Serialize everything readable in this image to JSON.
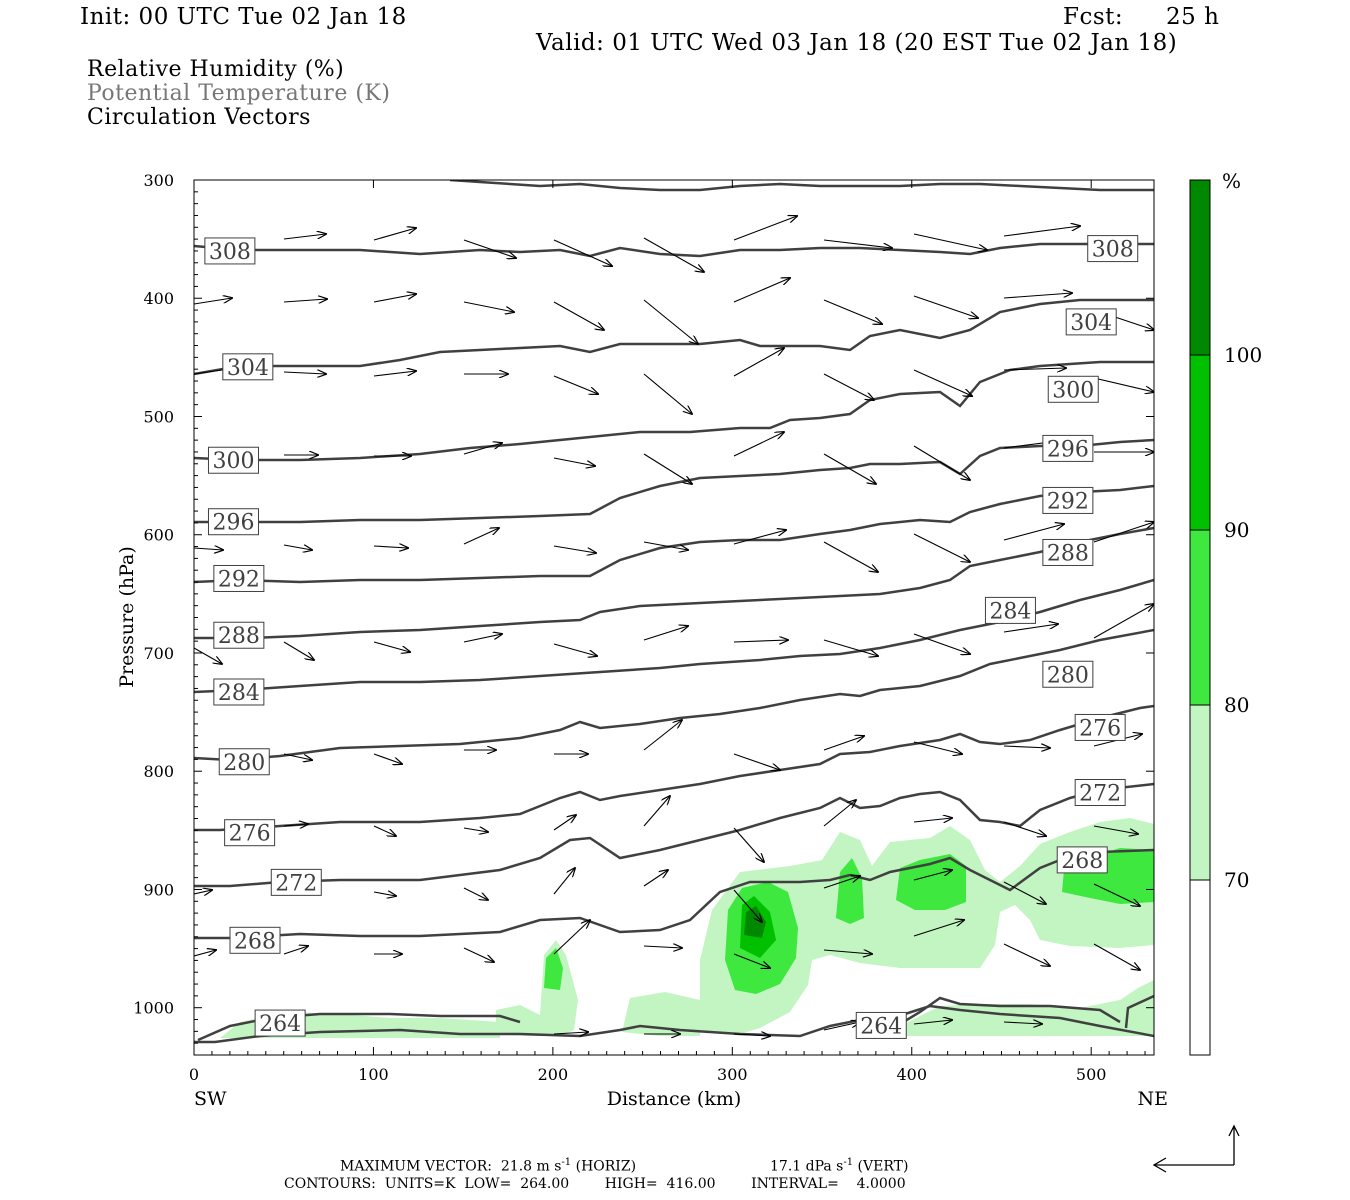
{
  "header": {
    "init": "Init: 00 UTC Tue 02 Jan 18",
    "fcst_label": "Fcst:",
    "fcst_value": "25 h",
    "valid": "Valid: 01 UTC Wed 03 Jan 18 (20 EST Tue 02 Jan 18)"
  },
  "legend": {
    "line1": "Relative Humidity (%)",
    "line2": "Potential Temperature (K)",
    "line3": "Circulation Vectors"
  },
  "footer": {
    "max_vector": "MAXIMUM VECTOR:  21.8 m s",
    "max_vector_sup": "-1",
    "max_vector_tail": " (HORIZ)",
    "vert": "17.1 dPa s",
    "vert_sup": "-1",
    "vert_tail": " (VERT)",
    "contours": "CONTOURS:  UNITS=K  LOW=  264.00        HIGH=  416.00        INTERVAL=    4.0000"
  },
  "colors": {
    "rh70": "#c2f5c2",
    "rh80": "#3ee83e",
    "rh90": "#00c000",
    "rh100": "#008800",
    "contour": "#404040",
    "grey_text": "#777777"
  },
  "chart_data": {
    "type": "cross-section",
    "xlabel": "Distance (km)",
    "ylabel": "Pressure (hPa)",
    "xlim": [
      0,
      535
    ],
    "ylim": [
      1040,
      300
    ],
    "xticks": [
      0,
      100,
      200,
      300,
      400,
      500
    ],
    "yticks": [
      300,
      400,
      500,
      600,
      700,
      800,
      900,
      1000
    ],
    "x_end_labels": [
      "SW",
      "NE"
    ],
    "colorbar": {
      "unit_label": "%",
      "levels": [
        70,
        80,
        90,
        100
      ],
      "colors": [
        "#ffffff",
        "#c2f5c2",
        "#3ee83e",
        "#00c000",
        "#008800"
      ]
    },
    "theta_contour_labels": [
      {
        "value": "308",
        "x": 20,
        "p": 360
      },
      {
        "value": "308",
        "x": 512,
        "p": 358
      },
      {
        "value": "304",
        "x": 500,
        "p": 420
      },
      {
        "value": "304",
        "x": 30,
        "p": 458
      },
      {
        "value": "300",
        "x": 490,
        "p": 477
      },
      {
        "value": "300",
        "x": 22,
        "p": 537
      },
      {
        "value": "296",
        "x": 487,
        "p": 527
      },
      {
        "value": "296",
        "x": 22,
        "p": 589
      },
      {
        "value": "292",
        "x": 487,
        "p": 571
      },
      {
        "value": "292",
        "x": 25,
        "p": 637
      },
      {
        "value": "288",
        "x": 487,
        "p": 615
      },
      {
        "value": "288",
        "x": 25,
        "p": 685
      },
      {
        "value": "284",
        "x": 455,
        "p": 664
      },
      {
        "value": "284",
        "x": 25,
        "p": 733
      },
      {
        "value": "280",
        "x": 487,
        "p": 718
      },
      {
        "value": "280",
        "x": 28,
        "p": 792
      },
      {
        "value": "276",
        "x": 505,
        "p": 763
      },
      {
        "value": "276",
        "x": 31,
        "p": 852
      },
      {
        "value": "272",
        "x": 505,
        "p": 818
      },
      {
        "value": "272",
        "x": 57,
        "p": 894
      },
      {
        "value": "268",
        "x": 495,
        "p": 875
      },
      {
        "value": "268",
        "x": 34,
        "p": 943
      },
      {
        "value": "264",
        "x": 48,
        "p": 1013
      },
      {
        "value": "264",
        "x": 383,
        "p": 1015
      }
    ]
  }
}
